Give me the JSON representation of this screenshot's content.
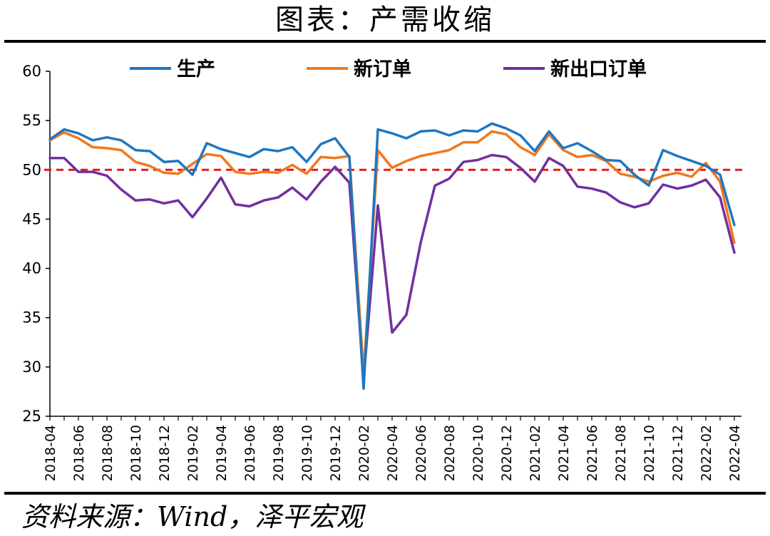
{
  "page_title": "图表：产需收缩",
  "source": "资料来源：Wind，泽平宏观",
  "chart_data": {
    "type": "line",
    "title": "图表：产需收缩",
    "xlabel": "",
    "ylabel": "",
    "ylim": [
      25,
      60
    ],
    "yticks": [
      25,
      30,
      35,
      40,
      45,
      50,
      55,
      60
    ],
    "grid": false,
    "legend": "top",
    "x": [
      "2018-04",
      "2018-05",
      "2018-06",
      "2018-07",
      "2018-08",
      "2018-09",
      "2018-10",
      "2018-11",
      "2018-12",
      "2019-01",
      "2019-02",
      "2019-03",
      "2019-04",
      "2019-05",
      "2019-06",
      "2019-07",
      "2019-08",
      "2019-09",
      "2019-10",
      "2019-11",
      "2019-12",
      "2020-01",
      "2020-02",
      "2020-03",
      "2020-04",
      "2020-05",
      "2020-06",
      "2020-07",
      "2020-08",
      "2020-09",
      "2020-10",
      "2020-11",
      "2020-12",
      "2021-01",
      "2021-02",
      "2021-03",
      "2021-04",
      "2021-05",
      "2021-06",
      "2021-07",
      "2021-08",
      "2021-09",
      "2021-10",
      "2021-11",
      "2021-12",
      "2022-01",
      "2022-02",
      "2022-03",
      "2022-04"
    ],
    "xtick_labels": [
      "2018-04",
      "2018-06",
      "2018-08",
      "2018-10",
      "2018-12",
      "2019-02",
      "2019-04",
      "2019-06",
      "2019-08",
      "2019-10",
      "2019-12",
      "2020-02",
      "2020-04",
      "2020-06",
      "2020-08",
      "2020-10",
      "2020-12",
      "2021-02",
      "2021-04",
      "2021-06",
      "2021-08",
      "2021-10",
      "2021-12",
      "2022-02",
      "2022-04"
    ],
    "reference_line": {
      "value": 50,
      "color": "#e8191c",
      "style": "dashed"
    },
    "series": [
      {
        "name": "生产",
        "color": "#1f77c1",
        "values": [
          53.1,
          54.1,
          53.7,
          53.0,
          53.3,
          53.0,
          52.0,
          51.9,
          50.8,
          50.9,
          49.5,
          52.7,
          52.1,
          51.7,
          51.3,
          52.1,
          51.9,
          52.3,
          50.8,
          52.6,
          53.2,
          51.3,
          27.8,
          54.1,
          53.7,
          53.2,
          53.9,
          54.0,
          53.5,
          54.0,
          53.9,
          54.7,
          54.2,
          53.5,
          51.9,
          53.9,
          52.2,
          52.7,
          51.9,
          51.0,
          50.9,
          49.5,
          48.4,
          52.0,
          51.4,
          50.9,
          50.4,
          49.5,
          44.4
        ]
      },
      {
        "name": "新订单",
        "color": "#f0781e",
        "values": [
          53.0,
          53.8,
          53.2,
          52.3,
          52.2,
          52.0,
          50.8,
          50.4,
          49.7,
          49.6,
          50.6,
          51.6,
          51.4,
          49.8,
          49.6,
          49.8,
          49.7,
          50.5,
          49.6,
          51.3,
          51.2,
          51.4,
          29.3,
          52.0,
          50.2,
          50.9,
          51.4,
          51.7,
          52.0,
          52.8,
          52.8,
          53.9,
          53.6,
          52.3,
          51.5,
          53.6,
          52.0,
          51.3,
          51.5,
          50.9,
          49.6,
          49.3,
          48.8,
          49.4,
          49.7,
          49.3,
          50.7,
          48.8,
          42.6
        ]
      },
      {
        "name": "新出口订单",
        "color": "#7030a0",
        "values": [
          51.2,
          51.2,
          49.8,
          49.8,
          49.4,
          48.0,
          46.9,
          47.0,
          46.6,
          46.9,
          45.2,
          47.1,
          49.2,
          46.5,
          46.3,
          46.9,
          47.2,
          48.2,
          47.0,
          48.8,
          50.3,
          48.7,
          28.7,
          46.4,
          33.5,
          35.3,
          42.6,
          48.4,
          49.1,
          50.8,
          51.0,
          51.5,
          51.3,
          50.2,
          48.8,
          51.2,
          50.4,
          48.3,
          48.1,
          47.7,
          46.7,
          46.2,
          46.6,
          48.5,
          48.1,
          48.4,
          49.0,
          47.2,
          41.6
        ]
      }
    ]
  }
}
